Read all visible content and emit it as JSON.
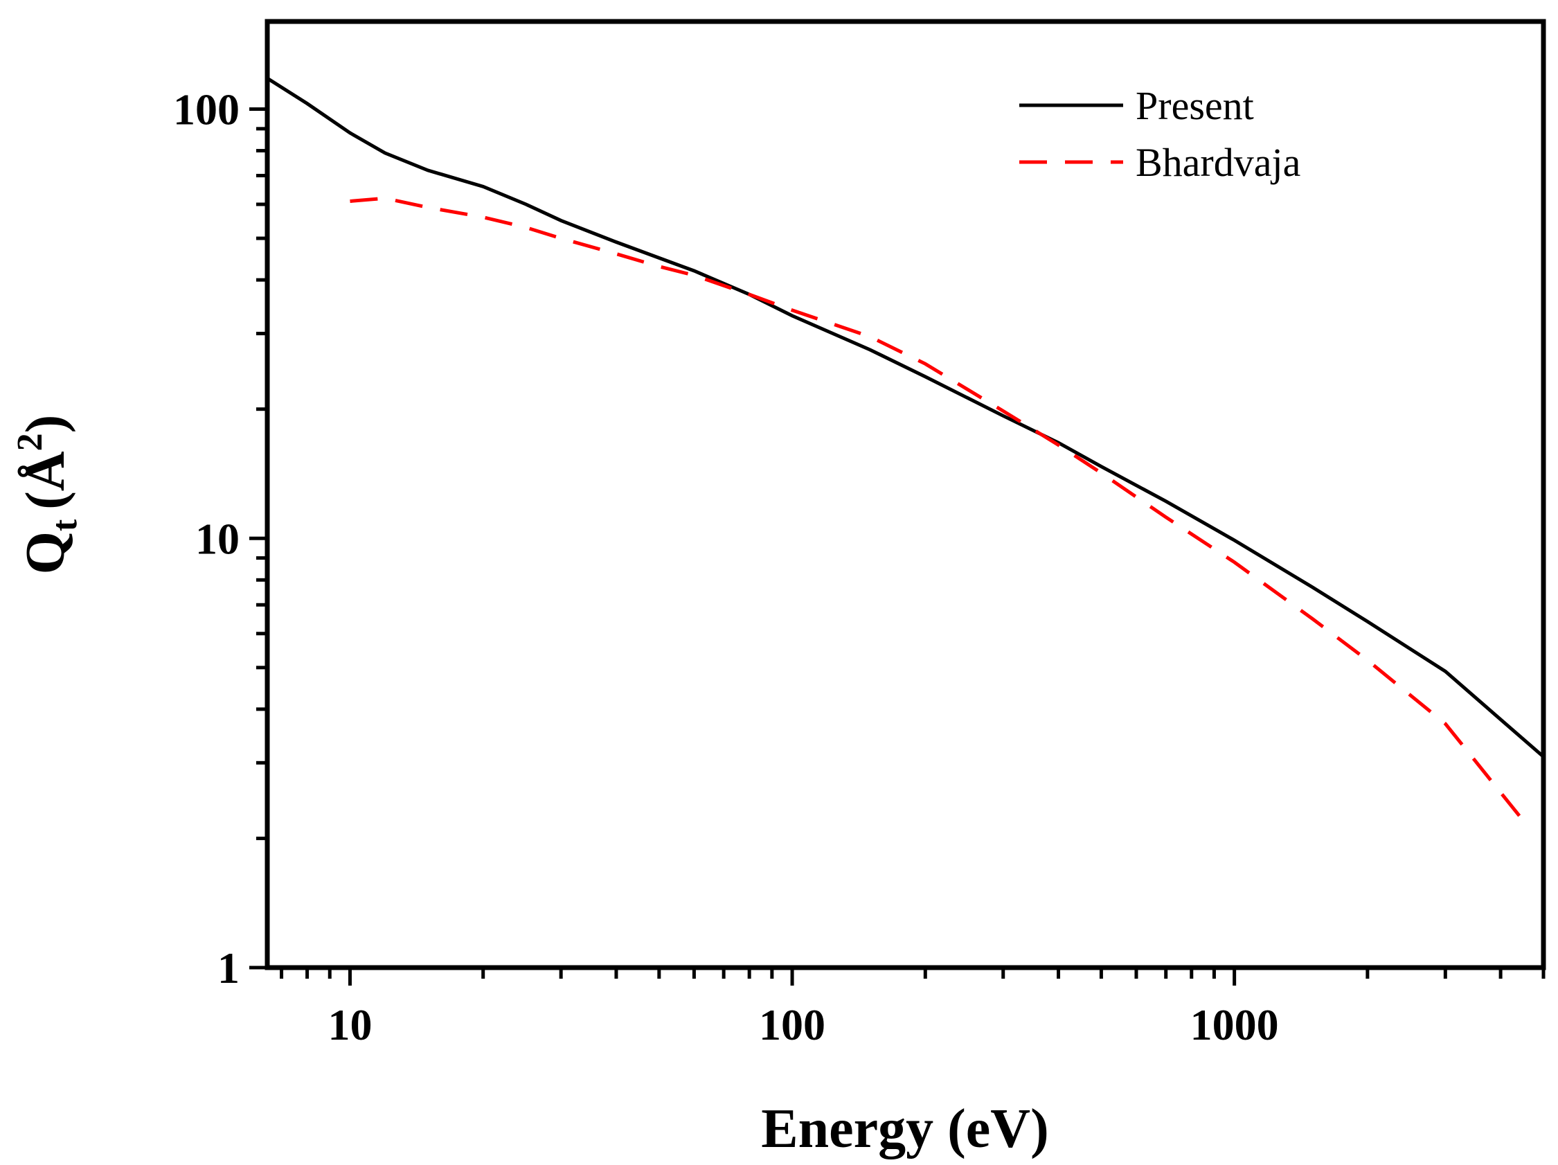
{
  "chart_data": {
    "type": "line",
    "title": "",
    "xlabel": "Energy (eV)",
    "ylabel_main": "Q",
    "ylabel_sub": "t",
    "ylabel_unit": "(Å",
    "ylabel_sup": "2",
    "ylabel_close": ")",
    "x_scale": "log",
    "y_scale": "log",
    "xlim": [
      6.5,
      5000
    ],
    "ylim": [
      1,
      160
    ],
    "x_ticks": [
      10,
      100,
      1000
    ],
    "x_tick_labels": [
      "10",
      "100",
      "1000"
    ],
    "y_ticks": [
      1,
      10,
      100
    ],
    "y_tick_labels": [
      "1",
      "10",
      "100"
    ],
    "grid": false,
    "legend_position": "top-right",
    "series": [
      {
        "name": "Present",
        "color": "#000000",
        "style": "solid",
        "x": [
          6.5,
          8,
          10,
          12,
          15,
          20,
          25,
          30,
          40,
          50,
          60,
          80,
          100,
          150,
          200,
          300,
          400,
          500,
          700,
          1000,
          1500,
          2000,
          3000,
          5000
        ],
        "y": [
          118,
          103,
          88,
          79,
          72,
          66,
          60,
          55,
          49,
          45,
          42,
          37,
          33,
          27.5,
          23.8,
          19.3,
          16.7,
          14.7,
          12.2,
          9.9,
          7.7,
          6.4,
          4.9,
          3.1
        ]
      },
      {
        "name": "Bhardvaja",
        "color": "#ff0000",
        "style": "dashed",
        "x": [
          10,
          12,
          15,
          20,
          25,
          30,
          40,
          50,
          60,
          80,
          100,
          150,
          200,
          300,
          400,
          500,
          700,
          1000,
          1500,
          2000,
          3000,
          4500
        ],
        "y": [
          61,
          62,
          59,
          56,
          53,
          50,
          46,
          43,
          41,
          37,
          34,
          29.5,
          25.5,
          19.8,
          16.5,
          14.2,
          11.2,
          8.8,
          6.5,
          5.2,
          3.7,
          2.2
        ]
      }
    ]
  }
}
